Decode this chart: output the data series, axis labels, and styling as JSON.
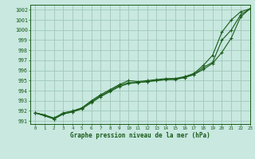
{
  "title": "Graphe pression niveau de la mer (hPa)",
  "bg_color": "#c8e8e0",
  "grid_color": "#a0c8b8",
  "line_color": "#1a5c1a",
  "xlim": [
    -0.5,
    23
  ],
  "ylim": [
    990.7,
    1002.5
  ],
  "yticks": [
    991,
    992,
    993,
    994,
    995,
    996,
    997,
    998,
    999,
    1000,
    1001,
    1002
  ],
  "xticks": [
    0,
    1,
    2,
    3,
    4,
    5,
    6,
    7,
    8,
    9,
    10,
    11,
    12,
    13,
    14,
    15,
    16,
    17,
    18,
    19,
    20,
    21,
    22,
    23
  ],
  "series1_x": [
    0,
    1,
    2,
    3,
    4,
    5,
    6,
    7,
    8,
    9,
    10,
    11,
    12,
    13,
    14,
    15,
    16,
    17,
    18,
    19,
    20,
    21,
    22,
    23
  ],
  "series1_y": [
    991.8,
    991.6,
    991.3,
    991.8,
    992.0,
    992.3,
    993.0,
    993.6,
    994.1,
    994.6,
    995.0,
    994.9,
    995.0,
    995.1,
    995.2,
    995.2,
    995.4,
    995.7,
    996.5,
    997.5,
    999.8,
    1001.0,
    1001.8,
    1002.1
  ],
  "series2_x": [
    0,
    1,
    2,
    3,
    4,
    5,
    6,
    7,
    8,
    9,
    10,
    11,
    12,
    13,
    14,
    15,
    16,
    17,
    18,
    19,
    20,
    21,
    22,
    23
  ],
  "series2_y": [
    991.8,
    991.6,
    991.2,
    991.7,
    991.9,
    992.3,
    992.9,
    993.5,
    994.0,
    994.5,
    994.8,
    994.8,
    994.9,
    995.0,
    995.1,
    995.1,
    995.3,
    995.6,
    996.3,
    996.8,
    999.0,
    1000.0,
    1001.5,
    1002.1
  ],
  "series3_x": [
    0,
    2,
    3,
    4,
    5,
    6,
    7,
    8,
    9,
    10,
    11,
    12,
    13,
    14,
    15,
    16,
    17,
    18,
    19,
    20,
    21,
    22,
    23
  ],
  "series3_y": [
    991.8,
    991.2,
    991.7,
    991.9,
    992.2,
    992.8,
    993.4,
    993.9,
    994.4,
    994.7,
    994.8,
    994.9,
    995.0,
    995.1,
    995.2,
    995.3,
    995.6,
    996.1,
    996.7,
    997.8,
    999.2,
    1001.3,
    1002.1
  ]
}
